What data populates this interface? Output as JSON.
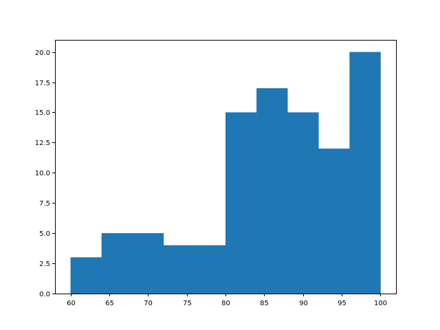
{
  "chart_data": {
    "type": "bar",
    "subtype": "histogram",
    "bins": [
      {
        "x0": 60,
        "x1": 64,
        "count": 3
      },
      {
        "x0": 64,
        "x1": 68,
        "count": 5
      },
      {
        "x0": 68,
        "x1": 72,
        "count": 5
      },
      {
        "x0": 72,
        "x1": 76,
        "count": 4
      },
      {
        "x0": 76,
        "x1": 80,
        "count": 4
      },
      {
        "x0": 80,
        "x1": 84,
        "count": 15
      },
      {
        "x0": 84,
        "x1": 88,
        "count": 17
      },
      {
        "x0": 88,
        "x1": 92,
        "count": 15
      },
      {
        "x0": 92,
        "x1": 96,
        "count": 12
      },
      {
        "x0": 96,
        "x1": 100,
        "count": 20
      }
    ],
    "xlim": [
      58,
      102
    ],
    "ylim": [
      0,
      21
    ],
    "xticks": [
      60,
      65,
      70,
      75,
      80,
      85,
      90,
      95,
      100
    ],
    "yticks": [
      0,
      2.5,
      5,
      7.5,
      10,
      12.5,
      15,
      17.5,
      20
    ],
    "xtick_labels": [
      "60",
      "65",
      "70",
      "75",
      "80",
      "85",
      "90",
      "95",
      "100"
    ],
    "ytick_labels": [
      "0.0",
      "2.5",
      "5.0",
      "7.5",
      "10.0",
      "12.5",
      "15.0",
      "17.5",
      "20.0"
    ],
    "title": "",
    "xlabel": "",
    "ylabel": "",
    "grid": false,
    "bar_color": "#1f77b4"
  }
}
